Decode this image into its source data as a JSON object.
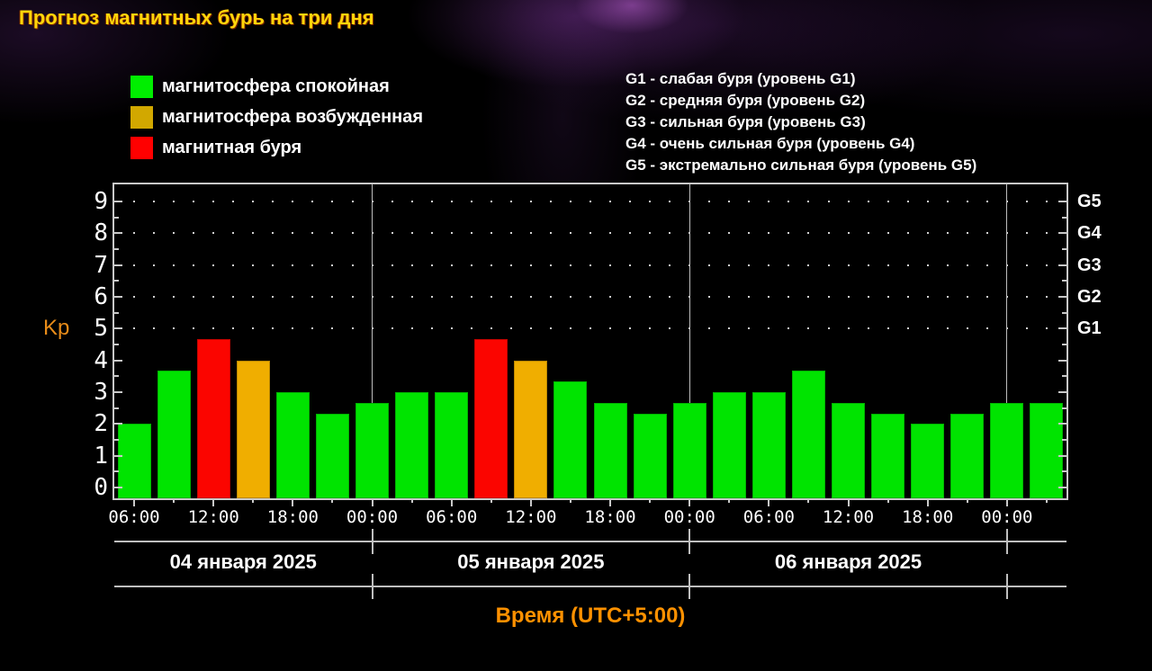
{
  "title": "Прогноз магнитных бурь на три дня",
  "legend": [
    {
      "label": "магнитосфера спокойная",
      "status": "quiet"
    },
    {
      "label": "магнитосфера возбужденная",
      "status": "excited"
    },
    {
      "label": "магнитная буря",
      "status": "storm"
    }
  ],
  "g_legend": [
    "G1 - слабая буря (уровень G1)",
    "G2 - средняя буря (уровень G2)",
    "G3 - сильная буря (уровень G3)",
    "G4 - очень сильная буря (уровень G4)",
    "G5 - экстремально сильная буря (уровень G5)"
  ],
  "chart_data": {
    "type": "bar",
    "title": "Прогноз магнитных бурь на три дня",
    "ylabel": "Kp",
    "xlabel": "Время (UTC+5:00)",
    "ylim": [
      -0.34,
      9.54
    ],
    "y_ticks": [
      0,
      1,
      2,
      3,
      4,
      5,
      6,
      7,
      8,
      9
    ],
    "right_axis": [
      {
        "kp": 5,
        "label": "G1"
      },
      {
        "kp": 6,
        "label": "G2"
      },
      {
        "kp": 7,
        "label": "G3"
      },
      {
        "kp": 8,
        "label": "G4"
      },
      {
        "kp": 9,
        "label": "G5"
      }
    ],
    "grid_dotted_levels": [
      5,
      6,
      7,
      8,
      9
    ],
    "bar_interval_hours": 3,
    "x_axis_start": "04:30",
    "x_tick_labels": [
      "06:00",
      "12:00",
      "18:00",
      "00:00",
      "06:00",
      "12:00",
      "18:00",
      "00:00",
      "06:00",
      "12:00",
      "18:00",
      "00:00"
    ],
    "colors": {
      "quiet": "#00e400",
      "excited": "#f0ae00",
      "storm": "#fb0500",
      "legend_quiet": "#00ee00",
      "legend_excited": "#d2a800",
      "legend_storm": "#ff0000",
      "title": "#ffd60a",
      "axis_title": "#ff9100",
      "kp_label": "#e78b19",
      "axis": "#c9c9c9"
    },
    "days": [
      {
        "date": "04 января 2025",
        "bars": [
          {
            "time": "06:00",
            "kp": 2.0,
            "status": "quiet"
          },
          {
            "time": "09:00",
            "kp": 3.67,
            "status": "quiet"
          },
          {
            "time": "12:00",
            "kp": 4.67,
            "status": "storm"
          },
          {
            "time": "15:00",
            "kp": 4.0,
            "status": "excited"
          },
          {
            "time": "18:00",
            "kp": 3.0,
            "status": "quiet"
          },
          {
            "time": "21:00",
            "kp": 2.33,
            "status": "quiet"
          }
        ]
      },
      {
        "date": "05 января 2025",
        "bars": [
          {
            "time": "00:00",
            "kp": 2.67,
            "status": "quiet"
          },
          {
            "time": "03:00",
            "kp": 3.0,
            "status": "quiet"
          },
          {
            "time": "06:00",
            "kp": 3.0,
            "status": "quiet"
          },
          {
            "time": "09:00",
            "kp": 4.67,
            "status": "storm"
          },
          {
            "time": "12:00",
            "kp": 4.0,
            "status": "excited"
          },
          {
            "time": "15:00",
            "kp": 3.33,
            "status": "quiet"
          },
          {
            "time": "18:00",
            "kp": 2.67,
            "status": "quiet"
          },
          {
            "time": "21:00",
            "kp": 2.33,
            "status": "quiet"
          }
        ]
      },
      {
        "date": "06 января 2025",
        "bars": [
          {
            "time": "00:00",
            "kp": 2.67,
            "status": "quiet"
          },
          {
            "time": "03:00",
            "kp": 3.0,
            "status": "quiet"
          },
          {
            "time": "06:00",
            "kp": 3.0,
            "status": "quiet"
          },
          {
            "time": "09:00",
            "kp": 3.67,
            "status": "quiet"
          },
          {
            "time": "12:00",
            "kp": 2.67,
            "status": "quiet"
          },
          {
            "time": "15:00",
            "kp": 2.33,
            "status": "quiet"
          },
          {
            "time": "18:00",
            "kp": 2.0,
            "status": "quiet"
          },
          {
            "time": "21:00",
            "kp": 2.33,
            "status": "quiet"
          }
        ]
      },
      {
        "date": "",
        "bars": [
          {
            "time": "00:00",
            "kp": 2.67,
            "status": "quiet"
          },
          {
            "time": "03:00",
            "kp": 2.67,
            "status": "quiet"
          }
        ]
      }
    ]
  }
}
